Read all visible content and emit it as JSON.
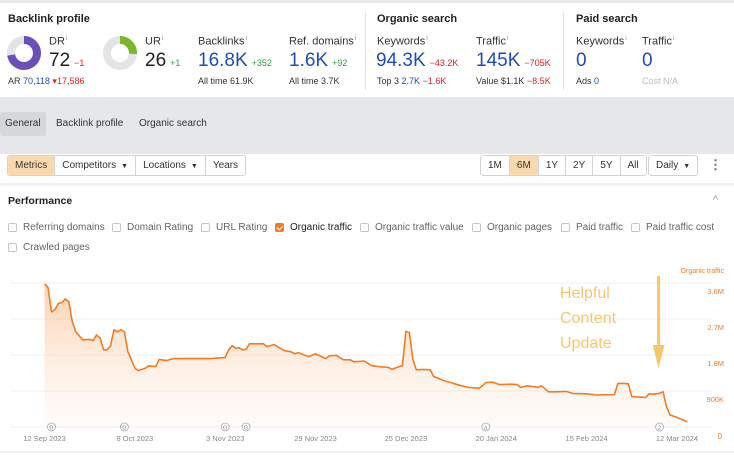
{
  "backlink_profile": {
    "title": "Backlink profile",
    "dr": {
      "label": "DR",
      "value": "72",
      "change": "−1",
      "percent": 72,
      "color": "#6b4fbb"
    },
    "ur": {
      "label": "UR",
      "value": "26",
      "change": "+1",
      "percent": 26,
      "color": "#7ab52b"
    },
    "ar": {
      "label": "AR",
      "value": "70,118",
      "change": "17,586"
    },
    "backlinks": {
      "label": "Backlinks",
      "value": "16.8K",
      "change": "+352",
      "sub_label": "All time",
      "sub_value": "61.9K"
    },
    "ref_domains": {
      "label": "Ref. domains",
      "value": "1.6K",
      "change": "+92",
      "sub_label": "All time",
      "sub_value": "3.7K"
    }
  },
  "organic_search": {
    "title": "Organic search",
    "keywords": {
      "label": "Keywords",
      "value": "94.3K",
      "change": "−43.2K",
      "sub_label": "Top 3",
      "sub_value": "2.7K",
      "sub_change": "−1.6K"
    },
    "traffic": {
      "label": "Traffic",
      "value": "145K",
      "change": "−705K",
      "sub_label": "Value",
      "sub_value": "$1.1K",
      "sub_change": "−8.5K"
    }
  },
  "paid_search": {
    "title": "Paid search",
    "keywords": {
      "label": "Keywords",
      "value": "0",
      "sub_label": "Ads",
      "sub_value": "0"
    },
    "traffic": {
      "label": "Traffic",
      "value": "0",
      "sub_label": "Cost",
      "sub_value": "N/A"
    }
  },
  "tabs": [
    {
      "label": "General",
      "active": true
    },
    {
      "label": "Backlink profile"
    },
    {
      "label": "Organic search"
    }
  ],
  "toolbar": {
    "left": [
      {
        "label": "Metrics",
        "active": true
      },
      {
        "label": "Competitors",
        "dropdown": true
      },
      {
        "label": "Locations",
        "dropdown": true
      },
      {
        "label": "Years"
      }
    ],
    "ranges": [
      {
        "label": "1M"
      },
      {
        "label": "6M",
        "active": true
      },
      {
        "label": "1Y"
      },
      {
        "label": "2Y"
      },
      {
        "label": "5Y"
      },
      {
        "label": "All"
      }
    ],
    "interval": "Daily",
    "more_icon": "vertical-ellipsis-icon"
  },
  "performance": {
    "title": "Performance",
    "collapse_icon": "chevron-up-icon",
    "metrics": [
      {
        "label": "Referring domains",
        "checked": false
      },
      {
        "label": "Domain Rating",
        "checked": false
      },
      {
        "label": "URL Rating",
        "checked": false
      },
      {
        "label": "Organic traffic",
        "checked": true
      },
      {
        "label": "Organic traffic value",
        "checked": false
      },
      {
        "label": "Organic pages",
        "checked": false
      },
      {
        "label": "Paid traffic",
        "checked": false
      },
      {
        "label": "Paid traffic cost",
        "checked": false
      },
      {
        "label": "Crawled pages",
        "checked": false
      }
    ]
  },
  "chart_data": {
    "type": "area",
    "series": [
      {
        "name": "Organic traffic",
        "color": "#f47b20",
        "points": [
          [
            "2023-09-12",
            3580000
          ],
          [
            "2023-09-13",
            3490000
          ],
          [
            "2023-09-14",
            2880000
          ],
          [
            "2023-09-15",
            2930000
          ],
          [
            "2023-09-16",
            3090000
          ],
          [
            "2023-09-17",
            3110000
          ],
          [
            "2023-09-18",
            3200000
          ],
          [
            "2023-09-19",
            3130000
          ],
          [
            "2023-09-20",
            2630000
          ],
          [
            "2023-09-21",
            2380000
          ],
          [
            "2023-09-23",
            2180000
          ],
          [
            "2023-09-25",
            2190000
          ],
          [
            "2023-09-26",
            2160000
          ],
          [
            "2023-09-27",
            2300000
          ],
          [
            "2023-09-28",
            2220000
          ],
          [
            "2023-09-29",
            1930000
          ],
          [
            "2023-09-30",
            1930000
          ],
          [
            "2023-10-01",
            2030000
          ],
          [
            "2023-10-02",
            2430000
          ],
          [
            "2023-10-03",
            2380000
          ],
          [
            "2023-10-04",
            2430000
          ],
          [
            "2023-10-05",
            2380000
          ],
          [
            "2023-10-06",
            1880000
          ],
          [
            "2023-10-08",
            1470000
          ],
          [
            "2023-10-09",
            1410000
          ],
          [
            "2023-10-11",
            1470000
          ],
          [
            "2023-10-12",
            1530000
          ],
          [
            "2023-10-14",
            1510000
          ],
          [
            "2023-10-15",
            1690000
          ],
          [
            "2023-10-17",
            1660000
          ],
          [
            "2023-10-19",
            1710000
          ],
          [
            "2023-10-23",
            1710000
          ],
          [
            "2023-10-30",
            1710000
          ],
          [
            "2023-11-03",
            1740000
          ],
          [
            "2023-11-04",
            1930000
          ],
          [
            "2023-11-05",
            2030000
          ],
          [
            "2023-11-06",
            1970000
          ],
          [
            "2023-11-07",
            1980000
          ],
          [
            "2023-11-08",
            1930000
          ],
          [
            "2023-11-09",
            1940000
          ],
          [
            "2023-11-10",
            2080000
          ],
          [
            "2023-11-14",
            2080000
          ],
          [
            "2023-11-15",
            2010000
          ],
          [
            "2023-11-17",
            2060000
          ],
          [
            "2023-11-18",
            2010000
          ],
          [
            "2023-11-20",
            1910000
          ],
          [
            "2023-11-22",
            1880000
          ],
          [
            "2023-11-23",
            1830000
          ],
          [
            "2023-11-24",
            1860000
          ],
          [
            "2023-11-27",
            1760000
          ],
          [
            "2023-11-29",
            1830000
          ],
          [
            "2023-11-30",
            1790000
          ],
          [
            "2023-12-02",
            1710000
          ],
          [
            "2023-12-03",
            1780000
          ],
          [
            "2023-12-05",
            1790000
          ],
          [
            "2023-12-07",
            1680000
          ],
          [
            "2023-12-09",
            1680000
          ],
          [
            "2023-12-10",
            1630000
          ],
          [
            "2023-12-13",
            1650000
          ],
          [
            "2023-12-15",
            1540000
          ],
          [
            "2023-12-17",
            1510000
          ],
          [
            "2023-12-20",
            1490000
          ],
          [
            "2023-12-21",
            1440000
          ],
          [
            "2023-12-23",
            1510000
          ],
          [
            "2023-12-24",
            1530000
          ],
          [
            "2023-12-25",
            2390000
          ],
          [
            "2023-12-26",
            2360000
          ],
          [
            "2023-12-27",
            1680000
          ],
          [
            "2023-12-28",
            1430000
          ],
          [
            "2023-12-30",
            1440000
          ],
          [
            "2024-01-01",
            1430000
          ],
          [
            "2024-01-02",
            1260000
          ],
          [
            "2024-01-05",
            1160000
          ],
          [
            "2024-01-07",
            1110000
          ],
          [
            "2024-01-08",
            1080000
          ],
          [
            "2024-01-10",
            1030000
          ],
          [
            "2024-01-12",
            990000
          ],
          [
            "2024-01-15",
            970000
          ],
          [
            "2024-01-16",
            1030000
          ],
          [
            "2024-01-17",
            1110000
          ],
          [
            "2024-01-19",
            1120000
          ],
          [
            "2024-01-21",
            1060000
          ],
          [
            "2024-01-24",
            1070000
          ],
          [
            "2024-01-26",
            1060000
          ],
          [
            "2024-01-27",
            990000
          ],
          [
            "2024-01-29",
            1030000
          ],
          [
            "2024-02-01",
            990000
          ],
          [
            "2024-02-02",
            1030000
          ],
          [
            "2024-02-04",
            880000
          ],
          [
            "2024-02-06",
            880000
          ],
          [
            "2024-02-09",
            890000
          ],
          [
            "2024-02-11",
            840000
          ],
          [
            "2024-02-15",
            830000
          ],
          [
            "2024-02-18",
            800000
          ],
          [
            "2024-02-23",
            810000
          ],
          [
            "2024-02-24",
            1090000
          ],
          [
            "2024-02-26",
            1090000
          ],
          [
            "2024-02-27",
            1080000
          ],
          [
            "2024-02-28",
            760000
          ],
          [
            "2024-03-03",
            740000
          ],
          [
            "2024-03-04",
            830000
          ],
          [
            "2024-03-05",
            820000
          ],
          [
            "2024-03-07",
            840000
          ],
          [
            "2024-03-08",
            880000
          ],
          [
            "2024-03-09",
            510000
          ],
          [
            "2024-03-10",
            300000
          ],
          [
            "2024-03-12",
            240000
          ],
          [
            "2024-03-15",
            130000
          ]
        ]
      }
    ],
    "x_ticks": [
      [
        "2023-09-12",
        "12 Sep 2023"
      ],
      [
        "2023-10-08",
        "8 Oct 2023"
      ],
      [
        "2023-11-03",
        "3 Nov 2023"
      ],
      [
        "2023-11-29",
        "29 Nov 2023"
      ],
      [
        "2023-12-25",
        "25 Dec 2023"
      ],
      [
        "2024-01-20",
        "20 Jan 2024"
      ],
      [
        "2024-02-15",
        "15 Feb 2024"
      ],
      [
        "2024-03-12",
        "12 Mar 2024"
      ]
    ],
    "y_axis": {
      "label": "Organic traffic",
      "position": "right",
      "range": [
        0,
        3600000
      ],
      "ticks": [
        [
          0,
          "0"
        ],
        [
          900000,
          "900K"
        ],
        [
          1800000,
          "1.8M"
        ],
        [
          2700000,
          "2.7M"
        ],
        [
          3600000,
          "3.6M"
        ]
      ]
    },
    "grid": true,
    "events": [
      [
        "2023-09-14",
        "G"
      ],
      [
        "2023-10-05",
        "G"
      ],
      [
        "2023-11-03",
        "G"
      ],
      [
        "2023-11-09",
        "G"
      ],
      [
        "2024-01-17",
        "a"
      ],
      [
        "2024-03-07",
        "2"
      ]
    ],
    "annotation": {
      "lines": [
        "Helpful",
        "Content",
        "Update"
      ],
      "color": "#f9c66e",
      "arrow_date": "2024-03-07"
    }
  }
}
